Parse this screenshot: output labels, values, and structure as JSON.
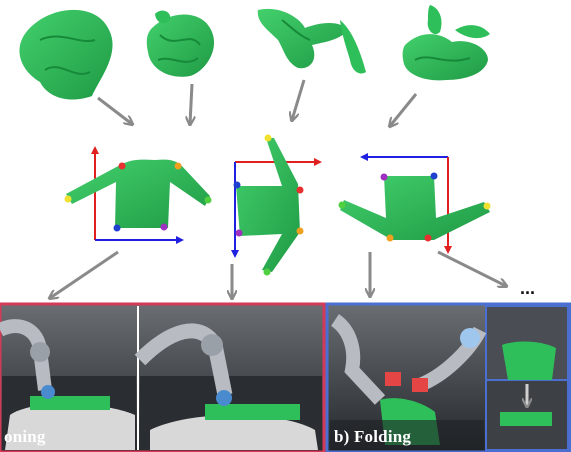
{
  "figure": {
    "continuation_marker": "...",
    "panels": [
      {
        "id": "ironing",
        "label": "oning",
        "border_color": "#d23a57"
      },
      {
        "id": "folding",
        "label": "b) Folding",
        "border_color": "#4a6fd0"
      }
    ],
    "crumpled_shirts": [
      {
        "name": "crumpled-shirt-1"
      },
      {
        "name": "crumpled-shirt-2"
      },
      {
        "name": "crumpled-shirt-3"
      },
      {
        "name": "crumpled-shirt-4"
      }
    ],
    "canonical_shirts": [
      {
        "name": "canonical-shirt-flat",
        "axis_colors": [
          "#e02020",
          "#2020e0"
        ]
      },
      {
        "name": "canonical-shirt-rotated",
        "axis_colors": [
          "#e02020",
          "#2020e0"
        ]
      },
      {
        "name": "canonical-shirt-inverted",
        "axis_colors": [
          "#e02020",
          "#2020e0"
        ]
      }
    ],
    "keypoint_colors": [
      "#e83030",
      "#f0a020",
      "#f0e030",
      "#50d040",
      "#2040d0",
      "#a030c0"
    ],
    "colors": {
      "shirt": "#2fbf5a",
      "shirt_dark": "#1f9a45",
      "arrow": "#8a8a8a",
      "robot_bg": "#3b3f44"
    }
  }
}
